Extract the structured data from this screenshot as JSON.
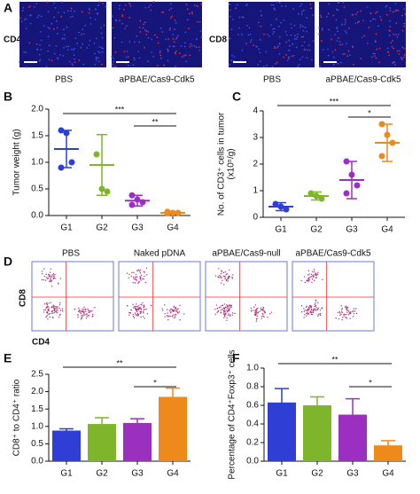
{
  "panel_a": {
    "label": "A",
    "rows": [
      "CD4",
      "CD8"
    ],
    "captions": [
      "PBS",
      "aPBAE/Cas9-Cdk5",
      "PBS",
      "aPBAE/Cas9-Cdk5"
    ]
  },
  "panel_d": {
    "label": "D",
    "titles": [
      "PBS",
      "Naked pDNA",
      "aPBAE/Cas9-null",
      "aPBAE/Cas9-Cdk5"
    ],
    "ylabel": "CD8",
    "xlabel": "CD4"
  },
  "chart_data": [
    {
      "panel": "B",
      "type": "scatter",
      "ylabel": [
        "Tumor weight (g)"
      ],
      "categories": [
        "G1",
        "G2",
        "G3",
        "G4"
      ],
      "series": [
        {
          "color": "#2f3fd6",
          "values": [
            1.6,
            1.55,
            1.0,
            0.9
          ]
        },
        {
          "color": "#7fb52a",
          "values": [
            1.15,
            0.5,
            0.45
          ]
        },
        {
          "color": "#9b30c0",
          "values": [
            0.38,
            0.3,
            0.25,
            0.2
          ]
        },
        {
          "color": "#ee8a1c",
          "values": [
            0.07,
            0.05,
            0.05,
            0.04
          ]
        }
      ],
      "means": [
        1.25,
        0.95,
        0.28,
        0.05
      ],
      "errors": [
        0.35,
        0.57,
        0.1,
        0.02
      ],
      "ylim": [
        0,
        2
      ],
      "yticks": [
        {
          "value": 0,
          "label": "0.0"
        },
        0.5,
        {
          "value": 1,
          "label": "1.0"
        },
        1.5,
        {
          "value": 2,
          "label": "2.0"
        }
      ],
      "annotations": [
        "***",
        "**"
      ]
    },
    {
      "panel": "C",
      "type": "scatter",
      "ylabel": [
        "No. of CD3⁺ cells in tumor",
        "(x10⁵/g)"
      ],
      "categories": [
        "G1",
        "G2",
        "G3",
        "G4"
      ],
      "series": [
        {
          "color": "#2f3fd6",
          "values": [
            0.5,
            0.4,
            0.3
          ]
        },
        {
          "color": "#7fb52a",
          "values": [
            0.9,
            0.8,
            0.7
          ]
        },
        {
          "color": "#9b30c0",
          "values": [
            2.1,
            1.6,
            1.2,
            0.9
          ]
        },
        {
          "color": "#ee8a1c",
          "values": [
            3.5,
            3.1,
            2.8,
            2.3
          ]
        }
      ],
      "means": [
        0.4,
        0.8,
        1.4,
        2.8
      ],
      "errors": [
        0.15,
        0.15,
        0.7,
        0.7
      ],
      "ylim": [
        0,
        4
      ],
      "yticks": [
        0,
        1,
        2,
        3,
        4
      ],
      "annotations": [
        "***",
        "*"
      ]
    },
    {
      "panel": "E",
      "type": "bar",
      "ylabel": [
        "CD8⁺ to CD4⁺ ratio"
      ],
      "categories": [
        "G1",
        "G2",
        "G3",
        "G4"
      ],
      "values": [
        0.88,
        1.07,
        1.1,
        1.85
      ],
      "errors": [
        0.05,
        0.18,
        0.12,
        0.25
      ],
      "colors": [
        "#2f3fd6",
        "#7fb52a",
        "#9b30c0",
        "#ee8a1c"
      ],
      "ylim": [
        0,
        2.5
      ],
      "yticks": [
        {
          "value": 0,
          "label": "0.0"
        },
        0.5,
        {
          "value": 1,
          "label": "1.0"
        },
        1.5,
        {
          "value": 2,
          "label": "2.0"
        },
        2.5
      ],
      "annotations": [
        "**",
        "*"
      ]
    },
    {
      "panel": "F",
      "type": "bar",
      "ylabel": [
        "Percentage of CD4⁺Foxp3⁺ cells"
      ],
      "categories": [
        "G1",
        "G2",
        "G3",
        "G4"
      ],
      "values": [
        0.63,
        0.6,
        0.5,
        0.17
      ],
      "errors": [
        0.15,
        0.09,
        0.17,
        0.05
      ],
      "colors": [
        "#2f3fd6",
        "#7fb52a",
        "#9b30c0",
        "#ee8a1c"
      ],
      "ylim": [
        0,
        1
      ],
      "yticks": [
        {
          "value": 0,
          "label": "0.0"
        },
        0.2,
        0.4,
        0.6,
        0.8,
        {
          "value": 1,
          "label": "1.0"
        }
      ],
      "annotations": [
        "**",
        "*"
      ]
    }
  ]
}
